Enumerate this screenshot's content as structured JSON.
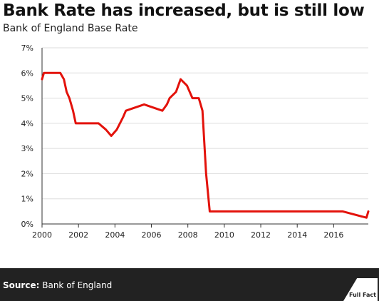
{
  "title": "Bank Rate has increased, but is still low",
  "subtitle": "Bank of England Base Rate",
  "source": {
    "label": "Source:",
    "text": "Bank of England"
  },
  "logo_text": "Full Fact",
  "colors": {
    "line": "#e3120b",
    "grid": "#dddddd",
    "footer": "#222222"
  },
  "chart_data": {
    "type": "line",
    "title": "Bank Rate has increased, but is still low",
    "subtitle": "Bank of England Base Rate",
    "xlabel": "",
    "ylabel": "",
    "xlim": [
      2000,
      2017.9
    ],
    "ylim": [
      0,
      7
    ],
    "x_ticks": [
      2000,
      2002,
      2004,
      2006,
      2008,
      2010,
      2012,
      2014,
      2016
    ],
    "y_ticks": [
      0,
      1,
      2,
      3,
      4,
      5,
      6,
      7
    ],
    "y_tick_format": "%",
    "grid": "horizontal",
    "series": [
      {
        "color": "#e3120b",
        "x": [
          2000.0,
          2000.1,
          2000.2,
          2001.0,
          2001.2,
          2001.35,
          2001.5,
          2001.7,
          2001.85,
          2003.1,
          2003.5,
          2003.8,
          2004.1,
          2004.45,
          2004.6,
          2005.6,
          2006.6,
          2006.85,
          2007.0,
          2007.35,
          2007.6,
          2007.95,
          2008.25,
          2008.6,
          2008.8,
          2009.0,
          2009.2,
          2016.5,
          2017.8,
          2017.9
        ],
        "values": [
          5.75,
          6.0,
          6.0,
          6.0,
          5.75,
          5.25,
          5.0,
          4.5,
          4.0,
          4.0,
          3.75,
          3.5,
          3.75,
          4.25,
          4.5,
          4.75,
          4.5,
          4.75,
          5.0,
          5.25,
          5.75,
          5.5,
          5.0,
          5.0,
          4.5,
          2.0,
          0.5,
          0.5,
          0.25,
          0.5
        ]
      }
    ]
  }
}
